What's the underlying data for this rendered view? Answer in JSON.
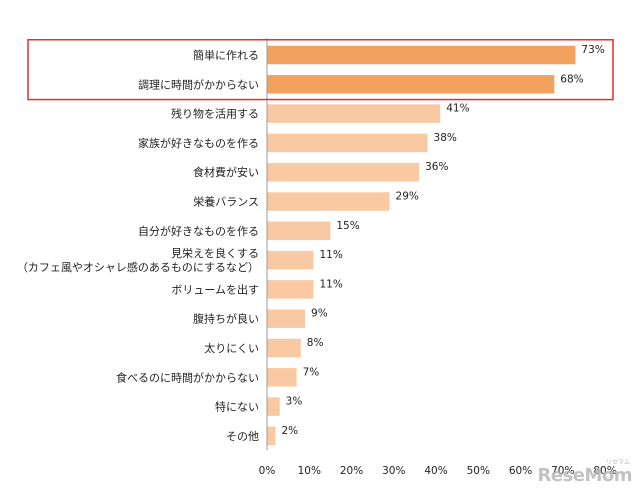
{
  "chart_data": {
    "type": "bar",
    "orientation": "horizontal",
    "title": "",
    "xlabel": "",
    "ylabel": "",
    "xlim": [
      0,
      80
    ],
    "x_ticks": [
      "0%",
      "10%",
      "20%",
      "30%",
      "40%",
      "50%",
      "60%",
      "70%",
      "80%"
    ],
    "categories": [
      [
        "簡単に作れる"
      ],
      [
        "調理に時間がかからない"
      ],
      [
        "残り物を活用する"
      ],
      [
        "家族が好きなものを作る"
      ],
      [
        "食材費が安い"
      ],
      [
        "栄養バランス"
      ],
      [
        "自分が好きなものを作る"
      ],
      [
        "見栄えを良くする",
        "（カフェ風やオシャレ感のあるものにするなど）"
      ],
      [
        "ボリュームを出す"
      ],
      [
        "腹持ちが良い"
      ],
      [
        "太りにくい"
      ],
      [
        "食べるのに時間がかからない"
      ],
      [
        "特にない"
      ],
      [
        "その他"
      ]
    ],
    "values": [
      73,
      68,
      41,
      38,
      36,
      29,
      15,
      11,
      11,
      9,
      8,
      7,
      3,
      2
    ],
    "value_labels": [
      "73%",
      "68%",
      "41%",
      "38%",
      "36%",
      "29%",
      "15%",
      "11%",
      "11%",
      "9%",
      "8%",
      "7%",
      "3%",
      "2%"
    ],
    "highlighted_indices": [
      0,
      1
    ],
    "colors": {
      "highlight_bar": "#f2a15f",
      "normal_bar": "#f9c9a3",
      "highlight_box": "#e03030",
      "axis": "#999999"
    }
  },
  "watermark": {
    "text": "ReseMom",
    "ruby": "リセマム"
  }
}
